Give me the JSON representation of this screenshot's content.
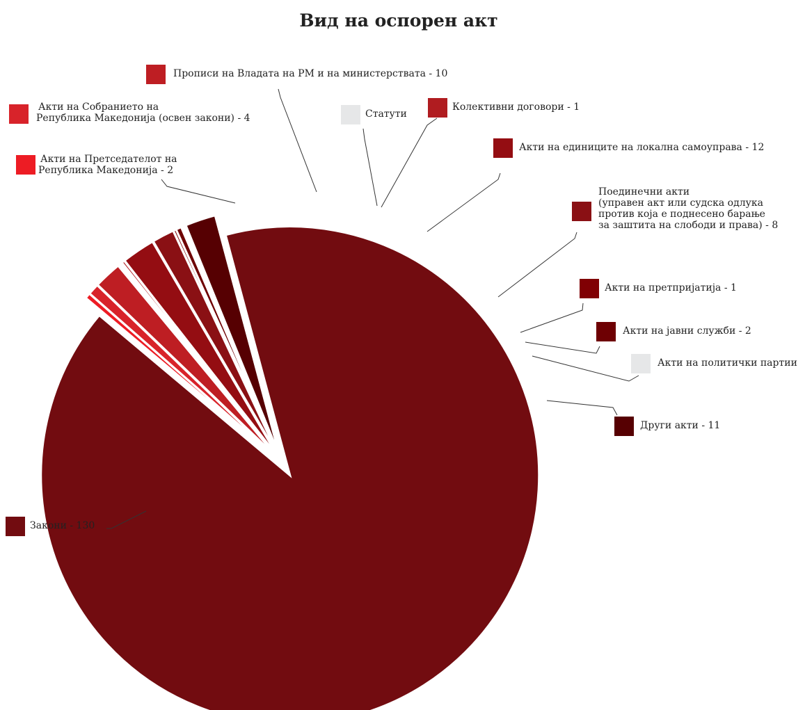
{
  "chart_data": {
    "type": "pie",
    "title": "Вид на оспорен акт",
    "slices": [
      {
        "label": [
          "Закони - 130"
        ],
        "value": 130,
        "color": "#720c10"
      },
      {
        "label": [
          "Акти на Претседателот на",
          "Република Македонија - 2"
        ],
        "value": 2,
        "color": "#ed1c24"
      },
      {
        "label": [
          "Акти на Собранието на",
          "Република Македонија (освен закони) - 4"
        ],
        "value": 4,
        "color": "#d8232a"
      },
      {
        "label": [
          "Прописи на Владата на РМ и на министерствата - 10"
        ],
        "value": 10,
        "color": "#be1e23"
      },
      {
        "label": [
          "Статути"
        ],
        "value": 0,
        "color": "#e6e7e8"
      },
      {
        "label": [
          "Колективни договори - 1"
        ],
        "value": 1,
        "color": "#b01c20"
      },
      {
        "label": [
          "Акти на единиците на локална самоуправа - 12"
        ],
        "value": 12,
        "color": "#940d12"
      },
      {
        "label": [
          "Поединечни акти",
          "(управен акт или судска одлука",
          "против која е поднесено барање",
          "за заштита на слободи и права) - 8"
        ],
        "value": 8,
        "color": "#8a1014"
      },
      {
        "label": [
          "Акти на претпријатија - 1"
        ],
        "value": 1,
        "color": "#800004"
      },
      {
        "label": [
          "Акти на јавни служби - 2"
        ],
        "value": 2,
        "color": "#6e0003"
      },
      {
        "label": [
          "Акти на политички партии"
        ],
        "value": 0,
        "color": "#e6e7e8"
      },
      {
        "label": [
          "Други акти - 11"
        ],
        "value": 11,
        "color": "#560002"
      }
    ]
  }
}
